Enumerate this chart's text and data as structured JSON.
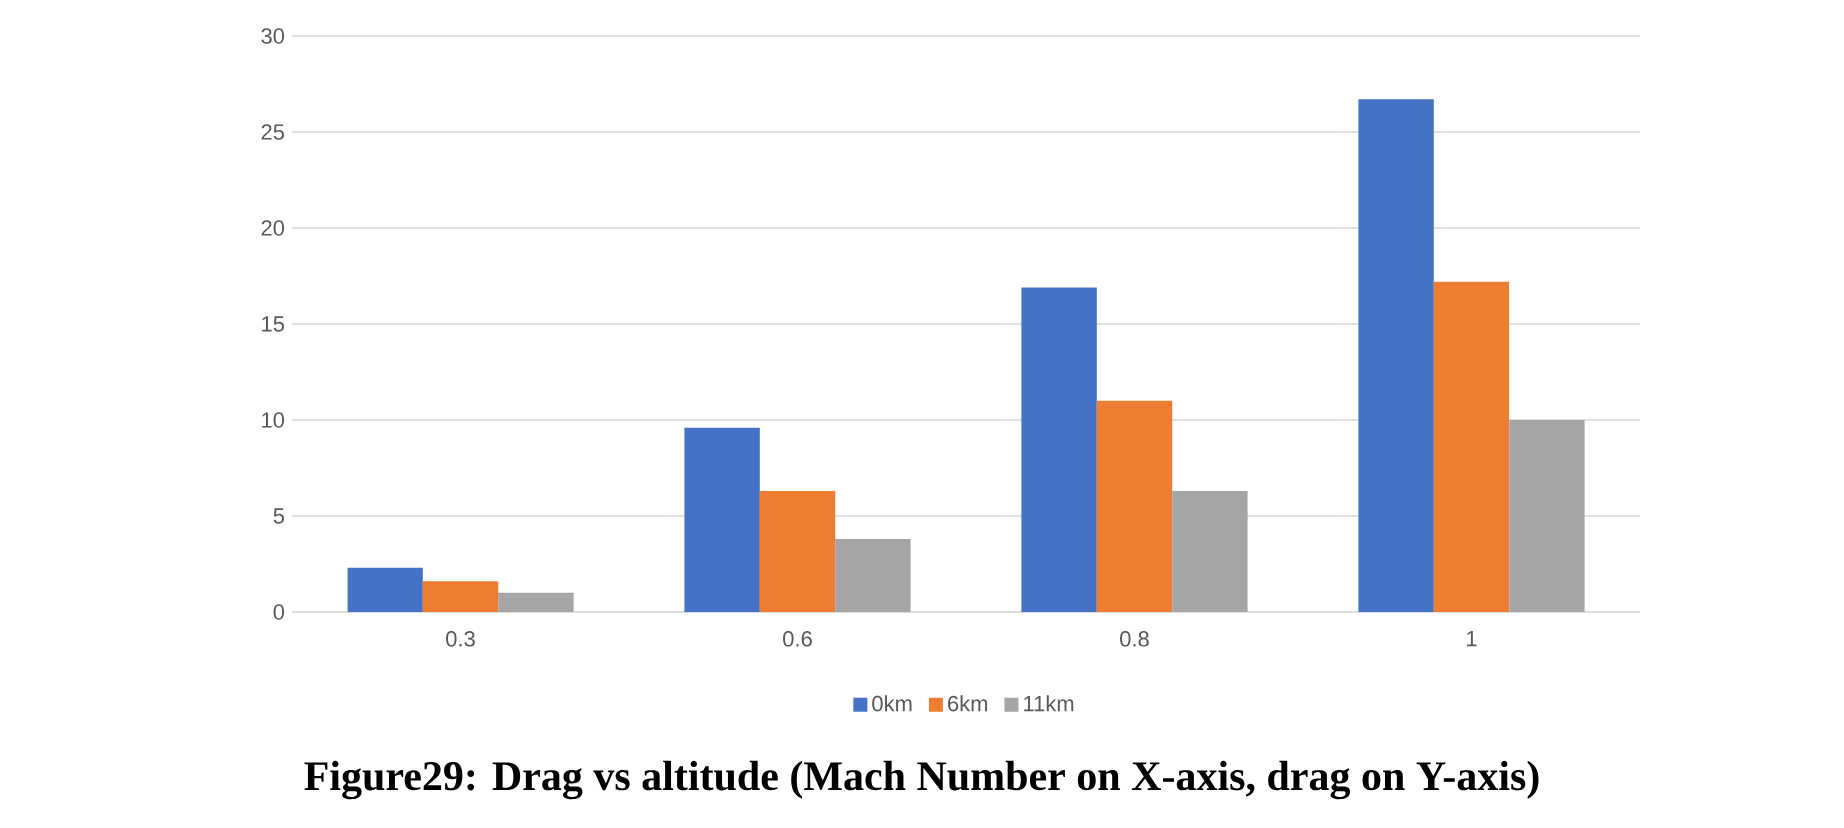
{
  "chart_data": {
    "type": "bar",
    "title": "Figure29: Drag vs altitude (Mach Number on X-axis, drag on Y-axis)",
    "categories": [
      "0.3",
      "0.6",
      "0.8",
      "1"
    ],
    "series": [
      {
        "name": "0km",
        "color": "#4472c4",
        "values": [
          2.3,
          9.6,
          16.9,
          26.7
        ]
      },
      {
        "name": "6km",
        "color": "#ed7d31",
        "values": [
          1.6,
          6.3,
          11.0,
          17.2
        ]
      },
      {
        "name": "11km",
        "color": "#a5a5a5",
        "values": [
          1.0,
          3.8,
          6.3,
          10.0
        ]
      }
    ],
    "ylim": [
      0,
      30
    ],
    "yticks": [
      0,
      5,
      10,
      15,
      20,
      25,
      30
    ],
    "grid": "y",
    "legend": "bottom"
  }
}
